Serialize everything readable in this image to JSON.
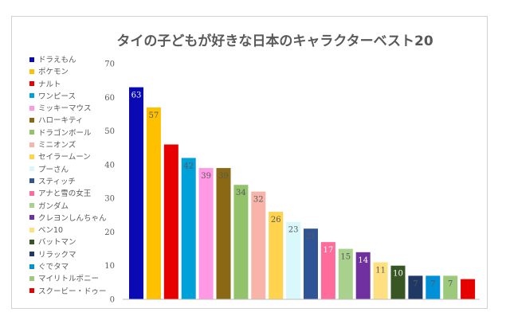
{
  "chart_data": {
    "type": "bar",
    "title": "タイの子どもが好きな日本のキャラクターベスト20",
    "xlabel": "",
    "ylabel": "",
    "ylim": [
      0,
      70
    ],
    "yticks": [
      "0",
      "10",
      "20",
      "30",
      "40",
      "50",
      "60",
      "70"
    ],
    "grid": false,
    "legend": "left",
    "categories": [
      "ドラえもん",
      "ポケモン",
      "ナルト",
      "ワンピース",
      "ミッキーマウス",
      "ハローキティ",
      "ドラゴンボール",
      "ミニオンズ",
      "セイラームーン",
      "プーさん",
      "スティッチ",
      "アナと雪の女王",
      "ガンダム",
      "クレヨンしんちゃん",
      "ベン10",
      "バットマン",
      "リラックマ",
      "ぐでタマ",
      "マイリトルポニー",
      "スクービー・ドゥー"
    ],
    "values": [
      63,
      57,
      46,
      42,
      39,
      39,
      34,
      32,
      26,
      23,
      21,
      17,
      15,
      14,
      11,
      10,
      7,
      7,
      7,
      6
    ],
    "value_labels": [
      "63",
      "57",
      "",
      "42",
      "39",
      "39",
      "34",
      "32",
      "26",
      "23",
      "21",
      "17",
      "15",
      "14",
      "11",
      "10",
      "7",
      "7",
      "7",
      ""
    ],
    "colors": [
      "#0a0ab4",
      "#ffc000",
      "#e60000",
      "#00a0d8",
      "#ff99e6",
      "#8b6914",
      "#92c36a",
      "#f8b4a8",
      "#ffd34d",
      "#d8f8fc",
      "#2f5597",
      "#ff6b9b",
      "#a9d18e",
      "#7030a0",
      "#ffe080",
      "#375623",
      "#1f3864",
      "#0090d8",
      "#9cc97c",
      "#e60000"
    ],
    "label_colors": [
      "#ffffff",
      "#595959",
      "#595959",
      "#595959",
      "#595959",
      "#595959",
      "#595959",
      "#595959",
      "#595959",
      "#595959",
      "#595959",
      "#ffffff",
      "#595959",
      "#ffffff",
      "#595959",
      "#ffffff",
      "#595959",
      "#595959",
      "#595959",
      "#595959"
    ]
  }
}
